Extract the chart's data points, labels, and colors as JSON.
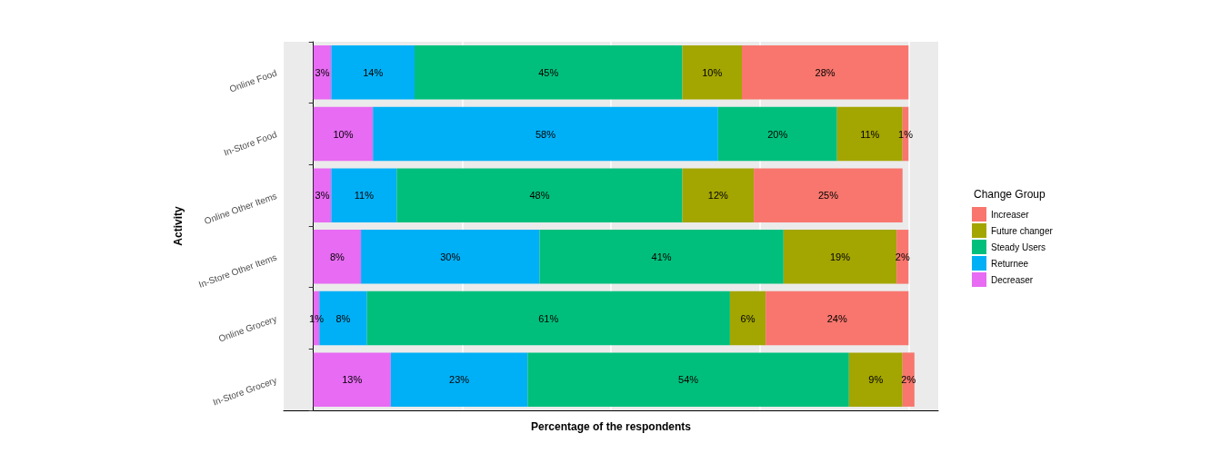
{
  "chart_data": {
    "type": "bar",
    "orientation": "horizontal",
    "stacked": true,
    "xlabel": "Percentage of the respondents",
    "ylabel": "Activity",
    "legend_title": "Change Group",
    "legend": "right",
    "grid": "x",
    "tick_labels": "y",
    "xlim": [
      -5,
      105
    ],
    "xticks": [
      {
        "value": 0,
        "label": null
      },
      {
        "value": 25,
        "label": null
      },
      {
        "value": 50,
        "label": null
      },
      {
        "value": 75,
        "label": null
      },
      {
        "value": 100,
        "label": null
      }
    ],
    "categories": [
      "Online Food",
      "In-Store Food",
      "Online Other Items",
      "In-Store Other Items",
      "Online Grocery",
      "In-Store Grocery"
    ],
    "series": [
      {
        "name": "Decreaser",
        "color": "#e76bf3",
        "values": [
          3,
          10,
          3,
          8,
          1,
          13
        ],
        "value_labels": [
          "3%",
          "10%",
          "3%",
          "8%",
          "1%",
          "13%"
        ]
      },
      {
        "name": "Returnee",
        "color": "#00b0f6",
        "values": [
          14,
          58,
          11,
          30,
          8,
          23
        ],
        "value_labels": [
          "14%",
          "58%",
          "11%",
          "30%",
          "8%",
          "23%"
        ]
      },
      {
        "name": "Steady Users",
        "color": "#00bf7d",
        "values": [
          45,
          20,
          48,
          41,
          61,
          54
        ],
        "value_labels": [
          "45%",
          "20%",
          "48%",
          "41%",
          "61%",
          "54%"
        ]
      },
      {
        "name": "Future changer",
        "color": "#a3a500",
        "values": [
          10,
          11,
          12,
          19,
          6,
          9
        ],
        "value_labels": [
          "10%",
          "11%",
          "12%",
          "19%",
          "6%",
          "9%"
        ]
      },
      {
        "name": "Increaser",
        "color": "#f8766d",
        "values": [
          28,
          1,
          25,
          2,
          24,
          2
        ],
        "value_labels": [
          "28%",
          "1%",
          "25%",
          "2%",
          "24%",
          "2%"
        ]
      }
    ]
  }
}
